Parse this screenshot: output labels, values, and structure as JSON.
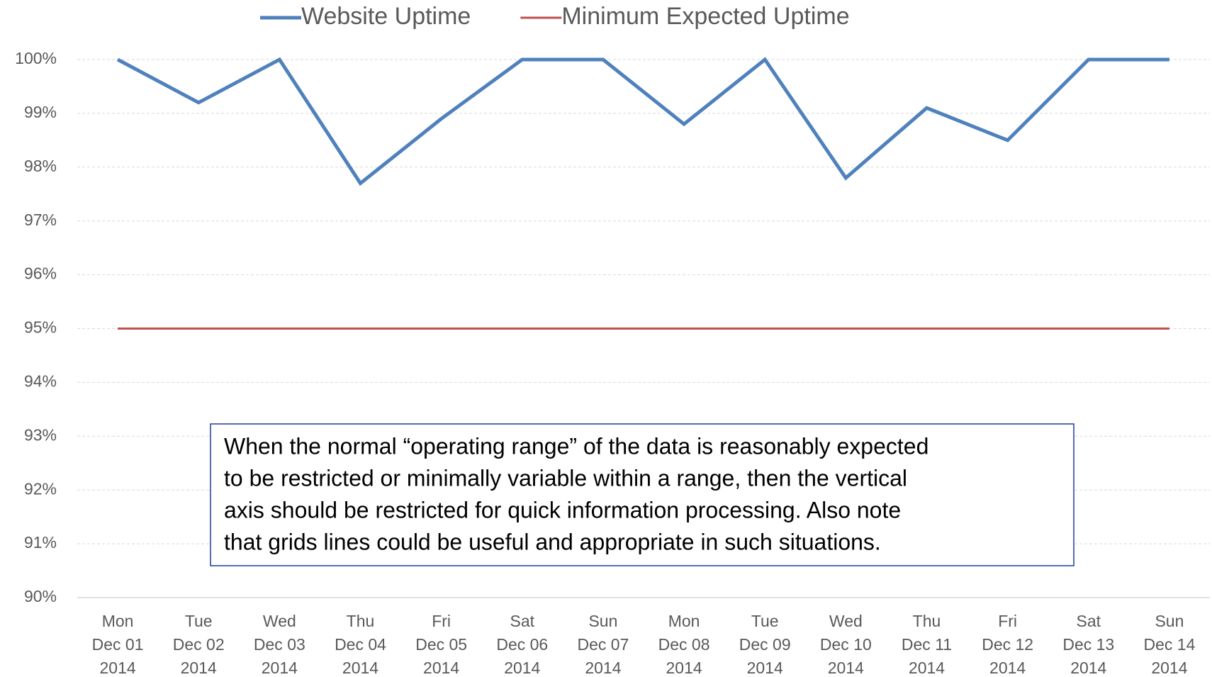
{
  "chart_data": {
    "type": "line",
    "categories": [
      [
        "Mon",
        "Dec 01",
        "2014"
      ],
      [
        "Tue",
        "Dec 02",
        "2014"
      ],
      [
        "Wed",
        "Dec 03",
        "2014"
      ],
      [
        "Thu",
        "Dec 04",
        "2014"
      ],
      [
        "Fri",
        "Dec 05",
        "2014"
      ],
      [
        "Sat",
        "Dec 06",
        "2014"
      ],
      [
        "Sun",
        "Dec 07",
        "2014"
      ],
      [
        "Mon",
        "Dec 08",
        "2014"
      ],
      [
        "Tue",
        "Dec 09",
        "2014"
      ],
      [
        "Wed",
        "Dec 10",
        "2014"
      ],
      [
        "Thu",
        "Dec 11",
        "2014"
      ],
      [
        "Fri",
        "Dec 12",
        "2014"
      ],
      [
        "Sat",
        "Dec 13",
        "2014"
      ],
      [
        "Sun",
        "Dec 14",
        "2014"
      ]
    ],
    "series": [
      {
        "name": "Website Uptime",
        "color": "#4f81bd",
        "values": [
          100,
          99.2,
          100,
          97.7,
          98.9,
          100,
          100,
          98.8,
          100,
          97.8,
          99.1,
          98.5,
          100,
          100
        ]
      },
      {
        "name": "Minimum Expected Uptime",
        "color": "#c0504d",
        "values": [
          95,
          95,
          95,
          95,
          95,
          95,
          95,
          95,
          95,
          95,
          95,
          95,
          95,
          95
        ]
      }
    ],
    "ylim": [
      90,
      100
    ],
    "yticks": [
      {
        "value": 90,
        "label": "90%"
      },
      {
        "value": 91,
        "label": "91%"
      },
      {
        "value": 92,
        "label": "92%"
      },
      {
        "value": 93,
        "label": "93%"
      },
      {
        "value": 94,
        "label": "94%"
      },
      {
        "value": 95,
        "label": "95%"
      },
      {
        "value": 96,
        "label": "96%"
      },
      {
        "value": 97,
        "label": "97%"
      },
      {
        "value": 98,
        "label": "98%"
      },
      {
        "value": 99,
        "label": "99%"
      },
      {
        "value": 100,
        "label": "100%"
      }
    ],
    "grid": true,
    "legend": "top",
    "annotation": [
      "When the normal “operating range” of the data is reasonably expected",
      "to be restricted or minimally variable within a range, then the vertical",
      "axis should be restricted for quick information processing. Also note",
      "that grids lines could be useful and appropriate in such situations."
    ]
  }
}
